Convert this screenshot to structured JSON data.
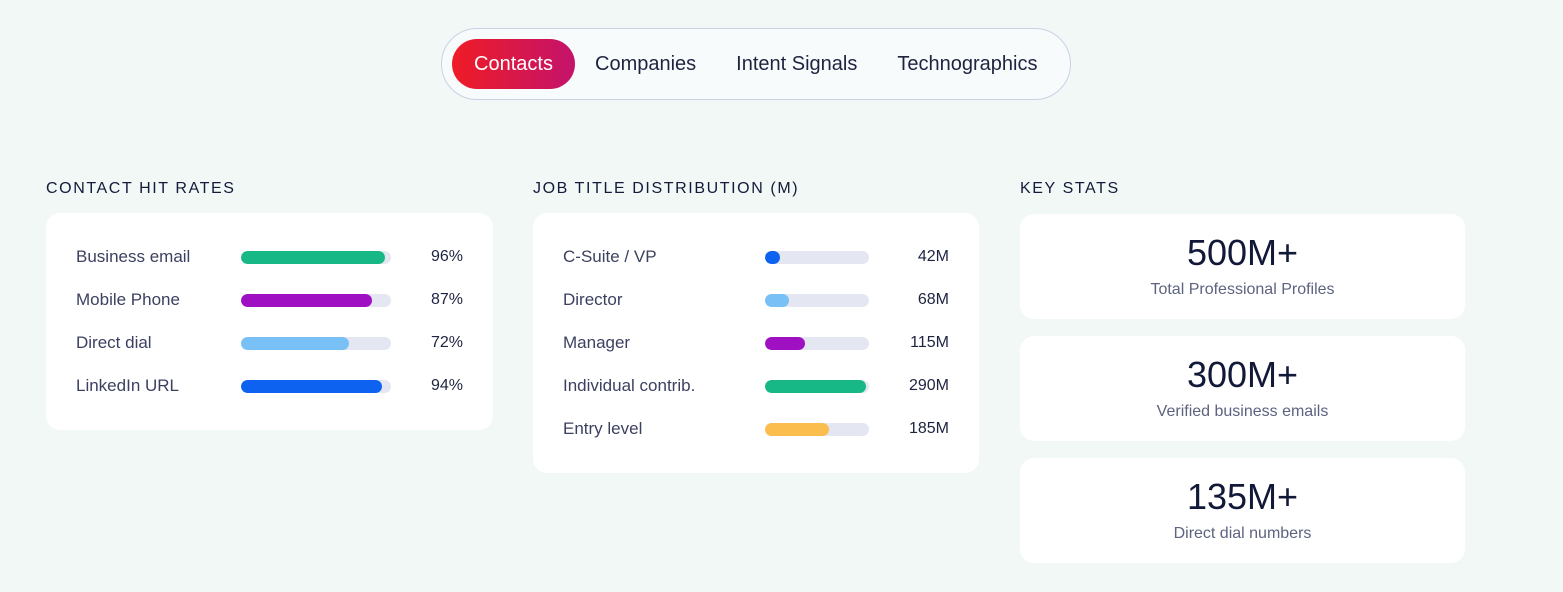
{
  "tabs": [
    {
      "label": "Contacts",
      "active": true
    },
    {
      "label": "Companies",
      "active": false
    },
    {
      "label": "Intent Signals",
      "active": false
    },
    {
      "label": "Technographics",
      "active": false
    }
  ],
  "hit_rates": {
    "title": "CONTACT HIT RATES",
    "items": [
      {
        "label": "Business email",
        "value": "96%",
        "percent": 96,
        "color": "#17b885"
      },
      {
        "label": "Mobile Phone",
        "value": "87%",
        "percent": 87,
        "color": "#9f10c2"
      },
      {
        "label": "Direct dial",
        "value": "72%",
        "percent": 72,
        "color": "#79c0f7"
      },
      {
        "label": "LinkedIn URL",
        "value": "94%",
        "percent": 94,
        "color": "#0e62f0"
      }
    ]
  },
  "job_titles": {
    "title": "JOB TITLE DISTRIBUTION (M)",
    "items": [
      {
        "label": "C-Suite / VP",
        "value": "42M",
        "amount": 42,
        "color": "#0e62f0"
      },
      {
        "label": "Director",
        "value": "68M",
        "amount": 68,
        "color": "#79c0f7"
      },
      {
        "label": "Manager",
        "value": "115M",
        "amount": 115,
        "color": "#9f10c2"
      },
      {
        "label": "Individual contrib.",
        "value": "290M",
        "amount": 290,
        "color": "#17b885"
      },
      {
        "label": "Entry level",
        "value": "185M",
        "amount": 185,
        "color": "#fbbd4e"
      }
    ]
  },
  "key_stats": {
    "title": "KEY STATS",
    "items": [
      {
        "value": "500M+",
        "label": "Total Professional Profiles"
      },
      {
        "value": "300M+",
        "label": "Verified business emails"
      },
      {
        "value": "135M+",
        "label": "Direct dial numbers"
      }
    ]
  }
}
